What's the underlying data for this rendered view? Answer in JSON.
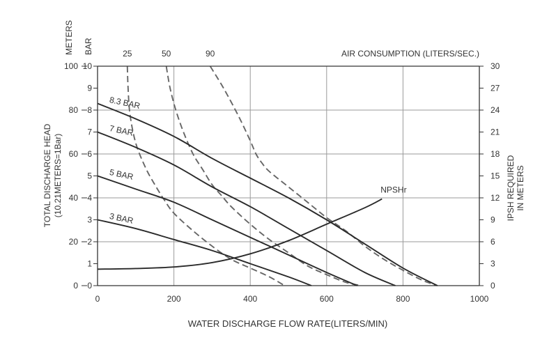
{
  "chart_data": {
    "type": "line",
    "title": "",
    "xlabel": "WATER DISCHARGE FLOW RATE(LITERS/MIN)",
    "xlim": [
      0,
      1000
    ],
    "x_ticks": [
      "0",
      "200",
      "400",
      "600",
      "800",
      "1000"
    ],
    "y_bar": {
      "label": "BAR",
      "lim": [
        0,
        10
      ],
      "ticks": [
        "0",
        "1",
        "2",
        "3",
        "4",
        "5",
        "6",
        "7",
        "8",
        "9",
        "10"
      ]
    },
    "y_meters": {
      "label": "METERS",
      "ticks": [
        "0",
        "20",
        "40",
        "60",
        "80",
        "100"
      ]
    },
    "y_left_title_line1": "TOTAL  DISCHARGE HEAD",
    "y_left_title_line2": "(10.21METERS=1Bar)",
    "y_right": {
      "label_line1": "IPSH REQUIRED",
      "label_line2": "IN METERS",
      "lim": [
        0,
        30
      ],
      "ticks": [
        "0",
        "3",
        "6",
        "9",
        "12",
        "15",
        "18",
        "21",
        "24",
        "27",
        "30"
      ]
    },
    "top_axis": {
      "label": "AIR CONSUMPTION (LITERS/SEC.)",
      "ticks": [
        "25",
        "50",
        "90"
      ]
    },
    "grid": true,
    "series": [
      {
        "name": "8.3 BAR",
        "x": [
          0,
          100,
          200,
          300,
          400,
          500,
          600,
          700,
          800,
          890
        ],
        "y": [
          8.3,
          7.6,
          6.8,
          5.8,
          4.9,
          4.0,
          3.0,
          1.9,
          0.8,
          0
        ]
      },
      {
        "name": "7 BAR",
        "x": [
          0,
          100,
          200,
          300,
          400,
          500,
          600,
          700,
          780
        ],
        "y": [
          7.0,
          6.3,
          5.5,
          4.5,
          3.6,
          2.6,
          1.6,
          0.6,
          0
        ]
      },
      {
        "name": "5 BAR",
        "x": [
          0,
          100,
          200,
          300,
          400,
          500,
          600,
          680
        ],
        "y": [
          5.0,
          4.4,
          3.8,
          3.0,
          2.2,
          1.4,
          0.6,
          0
        ]
      },
      {
        "name": "3 BAR",
        "x": [
          0,
          100,
          200,
          300,
          400,
          500,
          560
        ],
        "y": [
          3.0,
          2.6,
          2.1,
          1.6,
          1.0,
          0.4,
          0
        ]
      },
      {
        "name": "NPSHr",
        "x": [
          0,
          100,
          200,
          300,
          400,
          500,
          600,
          700,
          745
        ],
        "y": [
          0.75,
          0.78,
          0.85,
          1.05,
          1.45,
          2.05,
          2.8,
          3.55,
          3.95
        ]
      }
    ],
    "air_consumption": [
      {
        "name": "25",
        "x": [
          78,
          80,
          85,
          100,
          125,
          150,
          175,
          200,
          250,
          300,
          350,
          400,
          450,
          490
        ],
        "y": [
          10,
          9.0,
          7.8,
          6.5,
          5.4,
          4.6,
          3.9,
          3.3,
          2.5,
          1.8,
          1.2,
          0.8,
          0.4,
          0
        ]
      },
      {
        "name": "50",
        "x": [
          180,
          190,
          205,
          225,
          250,
          275,
          300,
          325,
          350,
          400,
          450,
          500,
          550,
          600,
          650,
          690
        ],
        "y": [
          10,
          9.0,
          8.0,
          7.0,
          6.0,
          5.3,
          4.6,
          4.1,
          3.6,
          2.8,
          2.1,
          1.5,
          0.9,
          0.5,
          0.15,
          0
        ]
      },
      {
        "name": "90",
        "x": [
          295,
          330,
          370,
          400,
          415,
          430,
          450,
          500,
          550,
          600,
          650,
          700,
          750,
          800,
          850,
          890
        ],
        "y": [
          10,
          9.0,
          7.7,
          6.6,
          6.0,
          5.6,
          5.2,
          4.5,
          3.8,
          3.1,
          2.5,
          1.8,
          1.2,
          0.7,
          0.25,
          0
        ]
      }
    ]
  }
}
